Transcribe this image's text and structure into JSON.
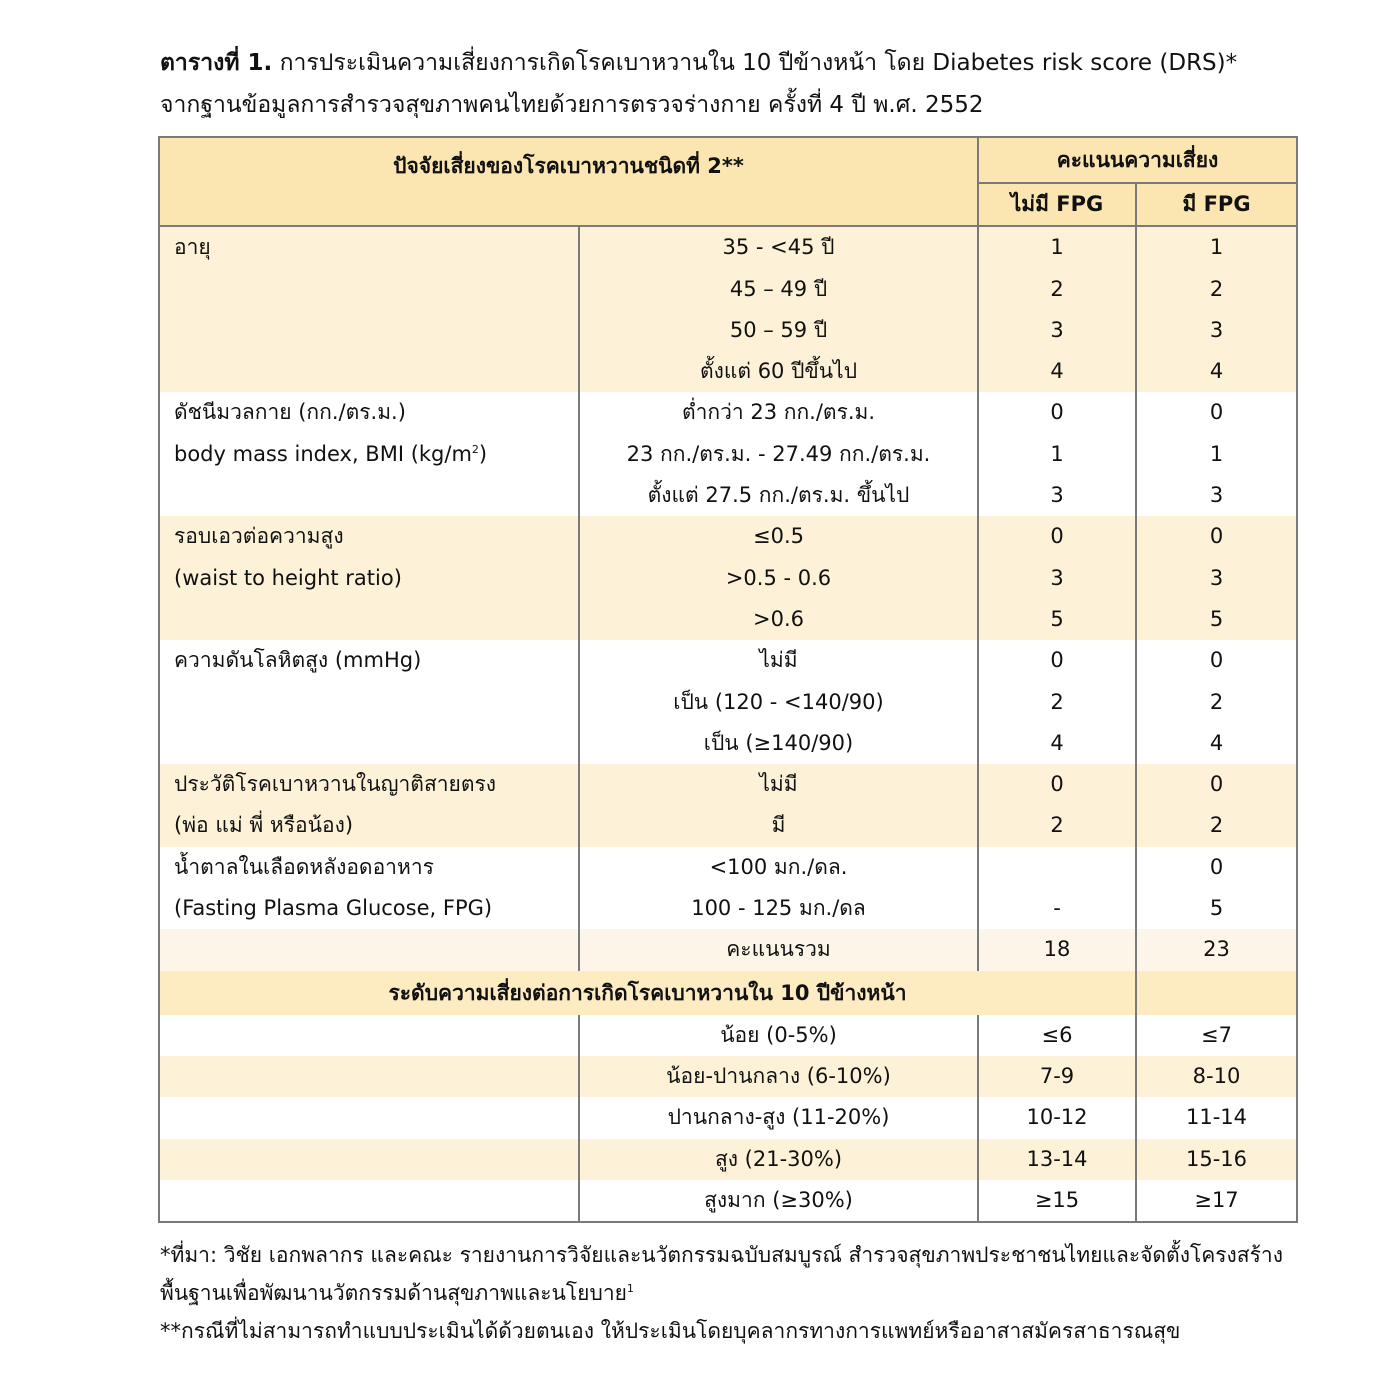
{
  "caption": {
    "lead": "ตารางที่ 1.",
    "line1": "การประเมินความเสี่ยงการเกิดโรคเบาหวานใน 10 ปีข้างหน้า โดย Diabetes risk score (DRS)*",
    "line2": "จากฐานข้อมูลการสำรวจสุขภาพคนไทยด้วยการตรวจร่างกาย ครั้งที่ 4 ปี พ.ศ. 2552"
  },
  "header": {
    "factor": "ปัจจัยเสี่ยงของโรคเบาหวานชนิดที่ 2**",
    "score": "คะแนนความเสี่ยง",
    "no_fpg": "ไม่มี FPG",
    "with_fpg": "มี FPG"
  },
  "groups": [
    {
      "lines": [
        "อายุ"
      ],
      "rows": [
        [
          "35 - <45 ปี",
          "1",
          "1"
        ],
        [
          "45 – 49 ปี",
          "2",
          "2"
        ],
        [
          "50 – 59 ปี",
          "3",
          "3"
        ],
        [
          "ตั้งแต่ 60 ปีขึ้นไป",
          "4",
          "4"
        ]
      ]
    },
    {
      "lines": [
        "ดัชนีมวลกาย (กก./ตร.ม.)",
        "body mass index, BMI (kg/m"
      ],
      "sup": "2",
      "sup_after": ")",
      "rows": [
        [
          "ต่ำกว่า 23 กก./ตร.ม.",
          "0",
          "0"
        ],
        [
          "23 กก./ตร.ม. - 27.49 กก./ตร.ม.",
          "1",
          "1"
        ],
        [
          "ตั้งแต่ 27.5 กก./ตร.ม. ขึ้นไป",
          "3",
          "3"
        ]
      ]
    },
    {
      "lines": [
        "รอบเอวต่อความสูง",
        "(waist to height ratio)"
      ],
      "rows": [
        [
          "≤0.5",
          "0",
          "0"
        ],
        [
          ">0.5 - 0.6",
          "3",
          "3"
        ],
        [
          ">0.6",
          "5",
          "5"
        ]
      ]
    },
    {
      "lines": [
        "ความดันโลหิตสูง (mmHg)"
      ],
      "rows": [
        [
          "ไม่มี",
          "0",
          "0"
        ],
        [
          "เป็น (120 - <140/90)",
          "2",
          "2"
        ],
        [
          "เป็น (≥140/90)",
          "4",
          "4"
        ]
      ]
    },
    {
      "lines": [
        "ประวัติโรคเบาหวานในญาติสายตรง",
        "(พ่อ แม่ พี่ หรือน้อง)"
      ],
      "rows": [
        [
          "ไม่มี",
          "0",
          "0"
        ],
        [
          "มี",
          "2",
          "2"
        ]
      ]
    },
    {
      "lines": [
        "น้ำตาลในเลือดหลังอดอาหาร",
        "(Fasting Plasma Glucose, FPG)"
      ],
      "rows": [
        [
          "<100 มก./ดล.",
          "",
          "0"
        ],
        [
          "100 - 125 มก./ดล",
          "-",
          "5"
        ]
      ]
    }
  ],
  "total": {
    "label": "คะแนนรวม",
    "no_fpg": "18",
    "with_fpg": "23"
  },
  "risk_header": "ระดับความเสี่ยงต่อการเกิดโรคเบาหวานใน 10 ปีข้างหน้า",
  "risk_levels": [
    [
      "น้อย (0-5%)",
      "≤6",
      "≤7"
    ],
    [
      "น้อย-ปานกลาง (6-10%)",
      "7-9",
      "8-10"
    ],
    [
      "ปานกลาง-สูง (11-20%)",
      "10-12",
      "11-14"
    ],
    [
      "สูง (21-30%)",
      "13-14",
      "15-16"
    ],
    [
      "สูงมาก (≥30%)",
      "≥15",
      "≥17"
    ]
  ],
  "footnotes": {
    "f1a": "*ที่มา: วิชัย เอกพลากร และคณะ รายงานการวิจัยและนวัตกรรมฉบับสมบูรณ์ สำรวจสุขภาพประชาชนไทยและจัดตั้งโครงสร้าง",
    "f1b": "พื้นฐานเพื่อพัฒนานวัตกรรมด้านสุขภาพและนโยบาย",
    "f1sup": "1",
    "f2": "**กรณีที่ไม่สามารถทำแบบประเมินได้ด้วยตนเอง ให้ประเมินโดยบุคลากรทางการแพทย์หรืออาสาสมัครสาธารณสุข"
  },
  "colors": {
    "header": "#fbe6b2",
    "band": "#fdf2d8",
    "border": "#7a7a7a"
  }
}
